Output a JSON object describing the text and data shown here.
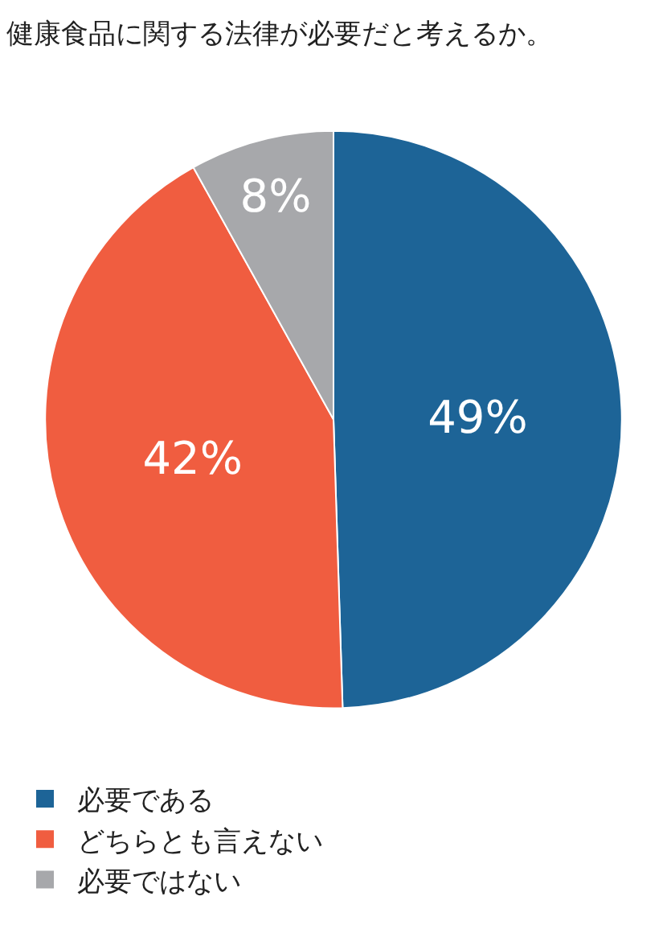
{
  "chart_data": {
    "type": "pie",
    "title": "健康食品に関する法律が必要だと考えるか。",
    "categories": [
      "必要である",
      "どちらとも言えない",
      "必要ではない"
    ],
    "values": [
      49,
      42,
      8
    ],
    "value_labels": [
      "49%",
      "42%",
      "8%"
    ],
    "colors": [
      "#1d6497",
      "#f05d40",
      "#a7a8ab"
    ],
    "legend": "bottom left"
  }
}
